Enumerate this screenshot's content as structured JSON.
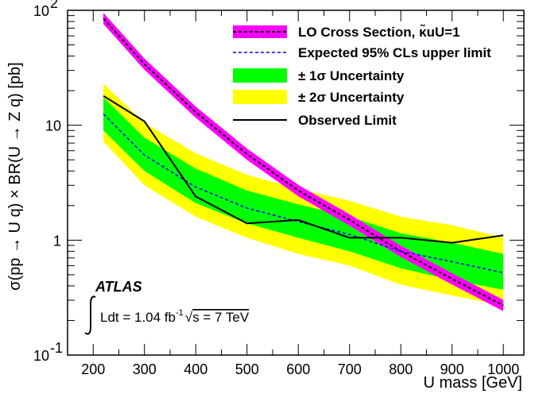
{
  "chart_data": {
    "type": "line",
    "xlabel": "U mass [GeV]",
    "ylabel": "σ(pp → U q) × BR(U → Z q) [pb]",
    "xlim": [
      150,
      1040
    ],
    "ylim": [
      0.1,
      100
    ],
    "yscale": "log",
    "x_ticks": [
      200,
      300,
      400,
      500,
      600,
      700,
      800,
      900,
      1000
    ],
    "y_ticks": [
      {
        "value": 0.1,
        "base": "10",
        "exp": "-1"
      },
      {
        "value": 1,
        "base": "1",
        "exp": ""
      },
      {
        "value": 10,
        "base": "10",
        "exp": ""
      },
      {
        "value": 100,
        "base": "10",
        "exp": "2"
      }
    ],
    "x": [
      220,
      300,
      400,
      500,
      600,
      700,
      800,
      900,
      1000
    ],
    "series": [
      {
        "key": "lo",
        "name": "LO Cross Section, κ̃uU=1",
        "values": [
          85,
          34,
          13,
          5.6,
          2.7,
          1.5,
          0.8,
          0.46,
          0.27
        ],
        "band_half_factor": 1.12
      },
      {
        "key": "expected",
        "name": "Expected 95% CLs upper limit",
        "values": [
          12.5,
          5.5,
          2.9,
          1.9,
          1.45,
          1.12,
          0.8,
          0.65,
          0.52
        ]
      },
      {
        "key": "one_sigma",
        "name": "± 1σ Uncertainty",
        "lower": [
          9,
          4,
          2.1,
          1.4,
          1.05,
          0.8,
          0.57,
          0.45,
          0.37
        ],
        "upper": [
          17.5,
          7.8,
          4.2,
          2.7,
          2.05,
          1.6,
          1.15,
          0.95,
          0.76
        ]
      },
      {
        "key": "two_sigma",
        "name": "± 2σ Uncertainty",
        "lower": [
          7.2,
          3.0,
          1.6,
          1.05,
          0.76,
          0.6,
          0.41,
          0.33,
          0.27
        ],
        "upper": [
          23,
          10.5,
          5.7,
          3.7,
          2.8,
          2.2,
          1.6,
          1.35,
          1.05
        ]
      },
      {
        "key": "observed",
        "name": "Observed Limit",
        "values": [
          18,
          10.8,
          2.4,
          1.4,
          1.5,
          1.05,
          1.05,
          0.95,
          1.1
        ]
      }
    ],
    "legend_position": "top-right",
    "colors": {
      "lo": "#ff00ff",
      "one_sigma": "#00ff00",
      "two_sigma": "#ffff00",
      "expected": "#0000ff",
      "observed": "#000000"
    },
    "annotations": {
      "experiment": "ATLAS",
      "lumi_prefix": "Ldt = 1.04 fb",
      "lumi_exp": "-1",
      "lumi_energy": "s = 7 TeV"
    }
  }
}
